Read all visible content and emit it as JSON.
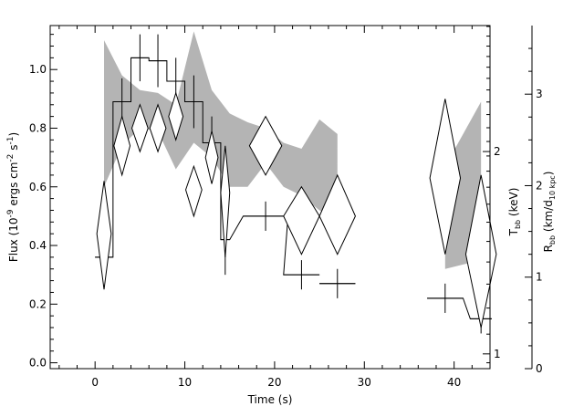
{
  "chart_data": {
    "type": "line",
    "xlabel": "Time (s)",
    "ylabel": "Flux (10^-9 ergs cm^-2 s^-1)",
    "ylabel_parts": {
      "base": "Flux (10",
      "exp1": "-9",
      "mid1": " ergs cm",
      "exp2": "-2",
      "mid2": " s",
      "exp3": "-1",
      "end": ")"
    },
    "right_label_T": {
      "base": "T",
      "sub": "bb",
      "end": " (keV)"
    },
    "right_label_R": {
      "base": "R",
      "sub": "bb",
      "mid": " (km/d",
      "sub2": "10 kpc",
      "end": ")"
    },
    "xlim": [
      -5,
      44
    ],
    "ylim": [
      -0.02,
      1.15
    ],
    "x_ticks": [
      0,
      10,
      20,
      30,
      40
    ],
    "x_tick_labels": [
      "0",
      "10",
      "20",
      "30",
      "40"
    ],
    "y_ticks": [
      0.0,
      0.2,
      0.4,
      0.6,
      0.8,
      1.0
    ],
    "y_tick_labels": [
      "0.0",
      "0.2",
      "0.4",
      "0.6",
      "0.8",
      "1.0"
    ],
    "T_axis": {
      "scale": "log",
      "ticks": [
        1,
        2
      ],
      "tick_labels": [
        "1",
        "2"
      ],
      "T_at_flux0": 0.97
    },
    "R_axis": {
      "scale": "linear",
      "ticks": [
        0,
        1,
        2,
        3
      ],
      "tick_labels": [
        "0",
        "1",
        "2",
        "3"
      ],
      "R_range": [
        0,
        3.75
      ]
    },
    "grid": false,
    "series": [
      {
        "kind": "flux_histogram",
        "points": [
          {
            "x": 1,
            "xerr": 1,
            "y": 0.36,
            "yerr": 0.07
          },
          {
            "x": 3,
            "xerr": 1,
            "y": 0.89,
            "yerr": 0.08
          },
          {
            "x": 5,
            "xerr": 1,
            "y": 1.04,
            "yerr": 0.08
          },
          {
            "x": 7,
            "xerr": 1,
            "y": 1.03,
            "yerr": 0.09
          },
          {
            "x": 9,
            "xerr": 1,
            "y": 0.96,
            "yerr": 0.08
          },
          {
            "x": 11,
            "xerr": 1,
            "y": 0.89,
            "yerr": 0.09
          },
          {
            "x": 13,
            "xerr": 1,
            "y": 0.75,
            "yerr": 0.09
          },
          {
            "x": 14.5,
            "xerr": 0.5,
            "y": 0.42,
            "yerr": 0.12
          },
          {
            "x": 19,
            "xerr": 2.5,
            "y": 0.5,
            "yerr": 0.05
          },
          {
            "x": 23,
            "xerr": 2,
            "y": 0.3,
            "yerr": 0.05
          },
          {
            "x": 27,
            "xerr": 2,
            "y": 0.27,
            "yerr": 0.05
          },
          {
            "x": 39,
            "xerr": 2,
            "y": 0.22,
            "yerr": 0.05
          },
          {
            "x": 43,
            "xerr": 1.2,
            "y": 0.15,
            "yerr": 0.05
          }
        ]
      },
      {
        "kind": "temperature_diamonds",
        "points": [
          {
            "x": 1,
            "xerr": 0.8,
            "y": 0.44,
            "y_lo": 0.25,
            "y_hi": 0.62
          },
          {
            "x": 3,
            "xerr": 0.9,
            "y": 0.74,
            "y_lo": 0.64,
            "y_hi": 0.84
          },
          {
            "x": 5,
            "xerr": 0.9,
            "y": 0.8,
            "y_lo": 0.72,
            "y_hi": 0.88
          },
          {
            "x": 7,
            "xerr": 0.9,
            "y": 0.8,
            "y_lo": 0.72,
            "y_hi": 0.88
          },
          {
            "x": 9,
            "xerr": 0.8,
            "y": 0.84,
            "y_lo": 0.76,
            "y_hi": 0.92
          },
          {
            "x": 11,
            "xerr": 0.9,
            "y": 0.59,
            "y_lo": 0.5,
            "y_hi": 0.67
          },
          {
            "x": 13,
            "xerr": 0.7,
            "y": 0.7,
            "y_lo": 0.61,
            "y_hi": 0.79
          },
          {
            "x": 14.5,
            "xerr": 0.5,
            "y": 0.58,
            "y_lo": 0.36,
            "y_hi": 0.74
          },
          {
            "x": 19,
            "xerr": 1.8,
            "y": 0.74,
            "y_lo": 0.64,
            "y_hi": 0.84
          },
          {
            "x": 23,
            "xerr": 2,
            "y": 0.5,
            "y_lo": 0.37,
            "y_hi": 0.6
          },
          {
            "x": 27,
            "xerr": 2,
            "y": 0.5,
            "y_lo": 0.37,
            "y_hi": 0.64
          },
          {
            "x": 39,
            "xerr": 1.7,
            "y": 0.63,
            "y_lo": 0.37,
            "y_hi": 0.9
          },
          {
            "x": 43,
            "xerr": 1.7,
            "y": 0.37,
            "y_lo": 0.12,
            "y_hi": 0.64
          }
        ]
      },
      {
        "kind": "radius_band",
        "color": "#b4b4b4",
        "segments": [
          {
            "x": [
              1,
              3,
              5,
              7,
              9,
              11,
              13,
              15,
              17,
              19,
              21,
              23,
              25,
              27
            ],
            "upper": [
              1.1,
              0.98,
              0.93,
              0.92,
              0.88,
              1.13,
              0.93,
              0.85,
              0.82,
              0.8,
              0.75,
              0.73,
              0.83,
              0.78
            ],
            "lower": [
              0.6,
              0.74,
              0.8,
              0.79,
              0.66,
              0.75,
              0.7,
              0.6,
              0.6,
              0.68,
              0.6,
              0.57,
              0.52,
              0.49
            ]
          },
          {
            "x": [
              39,
              43
            ],
            "upper": [
              0.67,
              0.89
            ],
            "lower": [
              0.32,
              0.35
            ]
          }
        ]
      }
    ]
  }
}
